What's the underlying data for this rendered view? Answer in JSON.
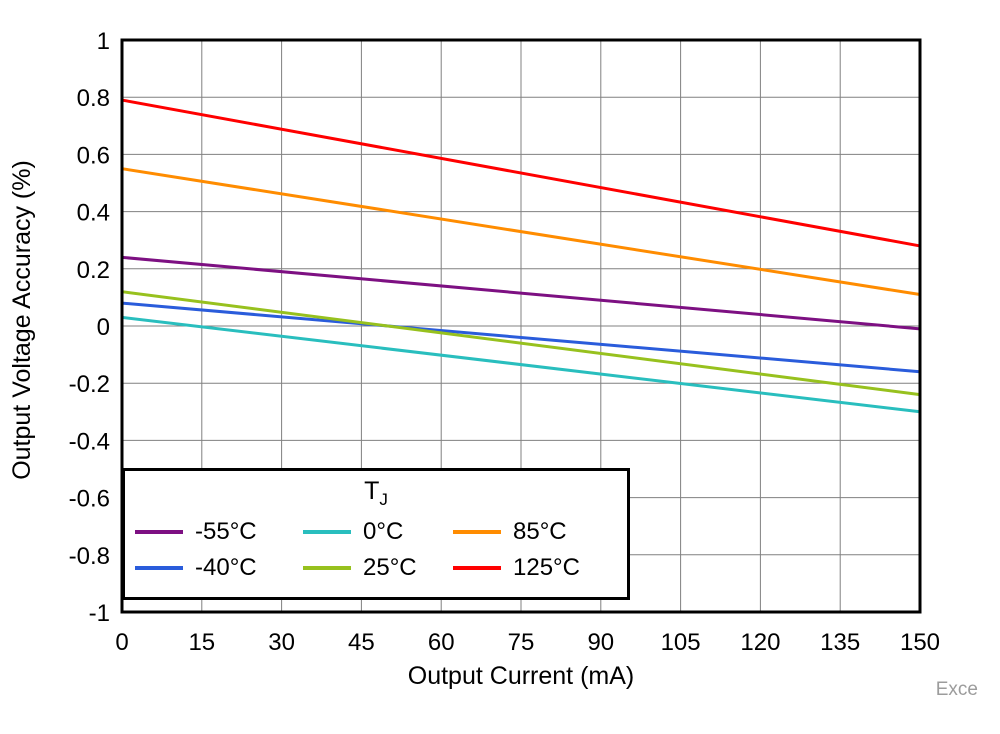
{
  "watermark": "Exce",
  "chart_data": {
    "type": "line",
    "title": "",
    "xlabel": "Output Current (mA)",
    "ylabel": "Output Voltage Accuracy (%)",
    "xlim": [
      0,
      150
    ],
    "ylim": [
      -1,
      1
    ],
    "xticks": [
      0,
      15,
      30,
      45,
      60,
      75,
      90,
      105,
      120,
      135,
      150
    ],
    "yticks": [
      -1,
      -0.8,
      -0.6,
      -0.4,
      -0.2,
      0,
      0.2,
      0.4,
      0.6,
      0.8,
      1
    ],
    "grid": true,
    "grid_color": "#808080",
    "border_color": "#000000",
    "legend_title": {
      "main": "T",
      "sub": "J"
    },
    "legend": {
      "position": "bottom-left",
      "rows": [
        [
          "-55°C",
          "0°C",
          "85°C"
        ],
        [
          "-40°C",
          "25°C",
          "125°C"
        ]
      ]
    },
    "series": [
      {
        "name": "-55°C",
        "color": "#7D1082",
        "x": [
          0,
          150
        ],
        "y": [
          0.24,
          -0.01
        ]
      },
      {
        "name": "-40°C",
        "color": "#2A5CDB",
        "x": [
          0,
          150
        ],
        "y": [
          0.08,
          -0.16
        ]
      },
      {
        "name": "0°C",
        "color": "#29BEBE",
        "x": [
          0,
          150
        ],
        "y": [
          0.03,
          -0.3
        ]
      },
      {
        "name": "25°C",
        "color": "#97C11E",
        "x": [
          0,
          150
        ],
        "y": [
          0.12,
          -0.24
        ]
      },
      {
        "name": "85°C",
        "color": "#FF8C00",
        "x": [
          0,
          150
        ],
        "y": [
          0.55,
          0.11
        ]
      },
      {
        "name": "125°C",
        "color": "#FF0000",
        "x": [
          0,
          150
        ],
        "y": [
          0.79,
          0.28
        ]
      }
    ]
  }
}
